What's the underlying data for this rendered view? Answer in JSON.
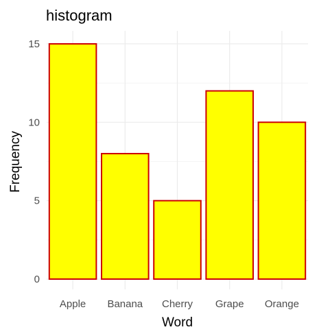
{
  "chart_data": {
    "type": "bar",
    "title": "histogram",
    "xlabel": "Word",
    "ylabel": "Frequency",
    "categories": [
      "Apple",
      "Banana",
      "Cherry",
      "Grape",
      "Orange"
    ],
    "values": [
      15,
      8,
      5,
      12,
      10
    ],
    "yticks": [
      "0",
      "5",
      "10",
      "15"
    ],
    "ylim": [
      0,
      15.7
    ],
    "grid": true,
    "legend": "none",
    "colors": {
      "bar_fill": "#ffff00",
      "bar_stroke": "#cc0000",
      "grid": "#ebebeb",
      "background": "#ffffff"
    }
  }
}
